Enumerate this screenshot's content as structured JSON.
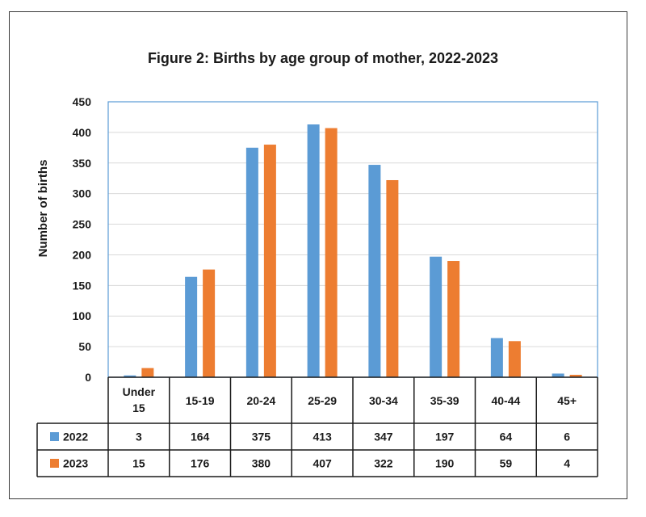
{
  "chart_data": {
    "type": "bar",
    "title": "Figure 2: Births by age group of mother, 2022-2023",
    "ylabel": "Number of births",
    "xlabel": "",
    "ylim": [
      0,
      450
    ],
    "yticks": [
      0,
      50,
      100,
      150,
      200,
      250,
      300,
      350,
      400,
      450
    ],
    "categories": [
      "Under 15",
      "15-19",
      "20-24",
      "25-29",
      "30-34",
      "35-39",
      "40-44",
      "45+"
    ],
    "category_lines": [
      [
        "Under",
        "15"
      ],
      [
        "15-19"
      ],
      [
        "20-24"
      ],
      [
        "25-29"
      ],
      [
        "30-34"
      ],
      [
        "35-39"
      ],
      [
        "40-44"
      ],
      [
        "45+"
      ]
    ],
    "series": [
      {
        "name": "2022",
        "color": "#5B9BD5",
        "values": [
          3,
          164,
          375,
          413,
          347,
          197,
          64,
          6
        ]
      },
      {
        "name": "2023",
        "color": "#ED7D31",
        "values": [
          15,
          176,
          380,
          407,
          322,
          190,
          59,
          4
        ]
      }
    ],
    "grid": true,
    "legend": "data-table"
  }
}
